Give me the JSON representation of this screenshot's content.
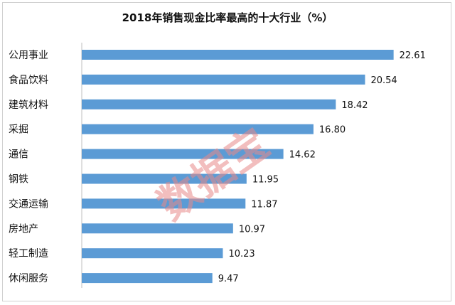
{
  "chart_data": {
    "type": "bar",
    "orientation": "horizontal",
    "title": "2018年销售现金比率最高的十大行业（%）",
    "categories": [
      "公用事业",
      "食品饮料",
      "建筑材料",
      "采掘",
      "通信",
      "钢铁",
      "交通运输",
      "房地产",
      "轻工制造",
      "休闲服务"
    ],
    "values": [
      22.61,
      20.54,
      18.42,
      16.8,
      14.62,
      11.95,
      11.87,
      10.97,
      10.23,
      9.47
    ],
    "value_labels": [
      "22.61",
      "20.54",
      "18.42",
      "16.80",
      "14.62",
      "11.95",
      "11.87",
      "10.97",
      "10.23",
      "9.47"
    ],
    "xlim": [
      0,
      25
    ],
    "xlabel": "",
    "ylabel": "",
    "grid": false,
    "legend": "none",
    "bar_color": "#5b9bd5"
  },
  "watermark": "数据宝"
}
